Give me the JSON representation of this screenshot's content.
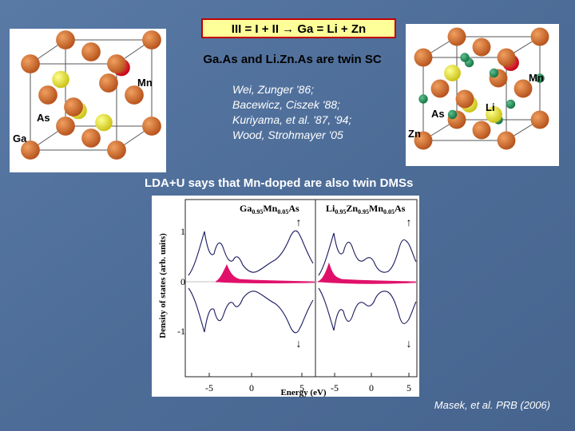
{
  "title": "III = I + II → Ga = Li + Zn",
  "subtitle": "Ga.As and Li.Zn.As are twin SC",
  "references": [
    "Wei, Zunger '86;",
    "Bacewicz, Ciszek '88;",
    "Kuriyama, et al. '87, '94;",
    "Wood, Strohmayer '05"
  ],
  "statement": "LDA+U says that Mn-doped are also twin DMSs",
  "citation": "Masek, et al. PRB (2006)",
  "left_structure": {
    "labels": [
      "Mn",
      "As",
      "Ga"
    ]
  },
  "right_structure": {
    "labels": [
      "Mn",
      "Li",
      "As",
      "Zn"
    ]
  },
  "figure": {
    "y_label": "Density of states (arb. units)",
    "x_label": "Energy (eV)",
    "y_ticks": [
      "1",
      "0",
      "-1"
    ],
    "panels": [
      {
        "title_parts": [
          "Ga",
          "0.95",
          "Mn",
          "0.05",
          "As"
        ],
        "spin_up": "↑",
        "spin_down": "↓",
        "x_ticks": [
          "-5",
          "0",
          "5"
        ]
      },
      {
        "title_parts": [
          "Li",
          "0.95",
          "Zn",
          "0.95",
          "Mn",
          "0.05",
          "As"
        ],
        "spin_up": "↑",
        "spin_down": "↓",
        "x_ticks": [
          "-5",
          "0",
          "5"
        ]
      }
    ]
  }
}
